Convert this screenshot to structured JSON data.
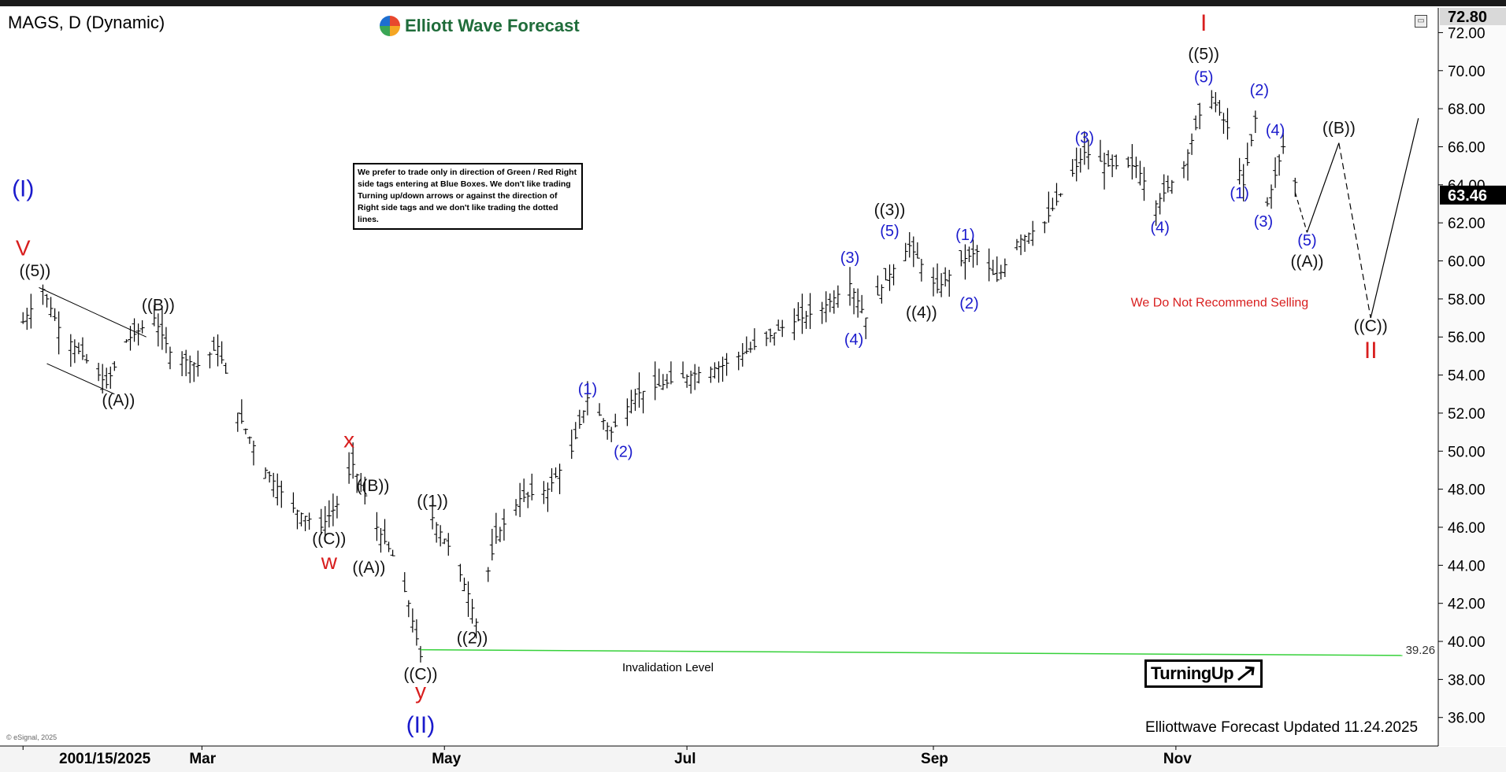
{
  "header": {
    "symbol": "MAGS, D (Dynamic)",
    "logo_text": "Elliott Wave Forecast",
    "expand_icon": "restore-window-icon"
  },
  "note": {
    "text": "We prefer to trade only in direction of Green / Red Right side tags entering at Blue Boxes. We don't like trading Turning up/down arrows or against the direction of Right side tags and we don't like trading the dotted lines."
  },
  "footer": {
    "updated": "Elliottwave Forecast Updated 11.24.2025",
    "esignal": "© eSignal, 2025",
    "dyn": "Dyn"
  },
  "turning_up": {
    "label": "TurningUp",
    "icon": "arrow-up-right-icon"
  },
  "colors": {
    "blue": "#1a1acc",
    "red": "#d81e1e",
    "black": "#111111",
    "green": "#36d13a",
    "grid": "#ffffff"
  },
  "chart_data": {
    "type": "ohlc",
    "title": "",
    "xlabel": "",
    "ylabel": "",
    "x_ticks": [
      "2001/15/2025",
      "Mar",
      "May",
      "Jul",
      "Sep",
      "Nov"
    ],
    "y_ticks": [
      36.0,
      38.0,
      40.0,
      42.0,
      44.0,
      46.0,
      48.0,
      50.0,
      52.0,
      54.0,
      56.0,
      58.0,
      60.0,
      62.0,
      64.0,
      66.0,
      68.0,
      70.0,
      72.0
    ],
    "ylim": [
      34.5,
      73.3
    ],
    "last_price": "63.46",
    "top_price": "72.80",
    "invalidation": {
      "value": 39.26,
      "label": "39.26",
      "text": "Invalidation Level"
    },
    "series": [
      {
        "values_key": "daily_path",
        "path": [
          [
            "2025-01-15",
            56.8
          ],
          [
            "2025-01-20",
            58.5
          ],
          [
            "2025-01-24",
            56.5
          ],
          [
            "2025-01-30",
            55.0
          ],
          [
            "2025-02-05",
            53.5
          ],
          [
            "2025-02-10",
            55.8
          ],
          [
            "2025-02-17",
            57.0
          ],
          [
            "2025-02-21",
            55.2
          ],
          [
            "2025-02-28",
            54.5
          ],
          [
            "2025-03-05",
            55.5
          ],
          [
            "2025-03-10",
            52.0
          ],
          [
            "2025-03-17",
            49.0
          ],
          [
            "2025-03-24",
            47.0
          ],
          [
            "2025-03-31",
            46.0
          ],
          [
            "2025-04-04",
            47.2
          ],
          [
            "2025-04-08",
            49.3
          ],
          [
            "2025-04-14",
            46.0
          ],
          [
            "2025-04-18",
            44.5
          ],
          [
            "2025-04-22",
            42.0
          ],
          [
            "2025-04-25",
            39.2
          ],
          [
            "2025-04-28",
            46.5
          ],
          [
            "2025-05-02",
            45.0
          ],
          [
            "2025-05-07",
            42.5
          ],
          [
            "2025-05-09",
            41.0
          ],
          [
            "2025-05-14",
            45.5
          ],
          [
            "2025-05-20",
            47.5
          ],
          [
            "2025-05-27",
            48.0
          ],
          [
            "2025-06-02",
            50.0
          ],
          [
            "2025-06-06",
            52.8
          ],
          [
            "2025-06-12",
            51.0
          ],
          [
            "2025-06-18",
            53.0
          ],
          [
            "2025-06-25",
            53.5
          ],
          [
            "2025-07-02",
            54.0
          ],
          [
            "2025-07-10",
            54.5
          ],
          [
            "2025-07-18",
            55.5
          ],
          [
            "2025-07-25",
            56.5
          ],
          [
            "2025-08-04",
            57.5
          ],
          [
            "2025-08-11",
            58.8
          ],
          [
            "2025-08-15",
            57.0
          ],
          [
            "2025-08-20",
            59.0
          ],
          [
            "2025-08-26",
            60.8
          ],
          [
            "2025-09-02",
            58.5
          ],
          [
            "2025-09-08",
            60.0
          ],
          [
            "2025-09-12",
            60.5
          ],
          [
            "2025-09-17",
            59.0
          ],
          [
            "2025-09-22",
            61.0
          ],
          [
            "2025-09-29",
            62.0
          ],
          [
            "2025-10-03",
            63.5
          ],
          [
            "2025-10-09",
            65.7
          ],
          [
            "2025-10-15",
            65.0
          ],
          [
            "2025-10-22",
            65.0
          ],
          [
            "2025-10-27",
            63.0
          ],
          [
            "2025-11-03",
            65.0
          ],
          [
            "2025-11-09",
            69.0
          ],
          [
            "2025-11-14",
            67.0
          ],
          [
            "2025-11-18",
            64.0
          ],
          [
            "2025-11-21",
            67.5
          ],
          [
            "2025-11-24",
            63.0
          ],
          [
            "2025-11-28",
            66.0
          ],
          [
            "2025-12-02",
            63.5
          ]
        ]
      }
    ],
    "projection": [
      [
        "2025-12-04",
        61.5
      ],
      [
        "2025-12-12",
        66.2
      ],
      [
        "2025-12-20",
        57.0
      ],
      [
        "2026-01-01",
        67.5
      ]
    ],
    "labels": [
      {
        "text": "(I)",
        "date": "2025-01-15",
        "y": 63.4,
        "color": "blue",
        "size": 30
      },
      {
        "text": "V",
        "date": "2025-01-15",
        "y": 60.3,
        "color": "red",
        "size": 28
      },
      {
        "text": "((5))",
        "date": "2025-01-18",
        "y": 59.2,
        "color": "black",
        "size": 21
      },
      {
        "text": "((A))",
        "date": "2025-02-08",
        "y": 52.4,
        "color": "black",
        "size": 21
      },
      {
        "text": "((B))",
        "date": "2025-02-18",
        "y": 57.4,
        "color": "black",
        "size": 21
      },
      {
        "text": "x",
        "date": "2025-04-07",
        "y": 50.2,
        "color": "red",
        "size": 28
      },
      {
        "text": "((B))",
        "date": "2025-04-13",
        "y": 47.9,
        "color": "black",
        "size": 21
      },
      {
        "text": "((1))",
        "date": "2025-04-28",
        "y": 47.1,
        "color": "black",
        "size": 21
      },
      {
        "text": "((C))",
        "date": "2025-04-02",
        "y": 45.1,
        "color": "black",
        "size": 21
      },
      {
        "text": "w",
        "date": "2025-04-02",
        "y": 43.8,
        "color": "red",
        "size": 28
      },
      {
        "text": "((A))",
        "date": "2025-04-12",
        "y": 43.6,
        "color": "black",
        "size": 21
      },
      {
        "text": "((2))",
        "date": "2025-05-08",
        "y": 39.9,
        "color": "black",
        "size": 21
      },
      {
        "text": "((C))",
        "date": "2025-04-25",
        "y": 38.0,
        "color": "black",
        "size": 21
      },
      {
        "text": "y",
        "date": "2025-04-25",
        "y": 37.0,
        "color": "red",
        "size": 28
      },
      {
        "text": "(II)",
        "date": "2025-04-25",
        "y": 35.2,
        "color": "blue",
        "size": 30
      },
      {
        "text": "(1)",
        "date": "2025-06-06",
        "y": 53.0,
        "color": "blue",
        "size": 20
      },
      {
        "text": "(2)",
        "date": "2025-06-15",
        "y": 49.7,
        "color": "blue",
        "size": 20
      },
      {
        "text": "(3)",
        "date": "2025-08-11",
        "y": 59.9,
        "color": "blue",
        "size": 20
      },
      {
        "text": "(4)",
        "date": "2025-08-12",
        "y": 55.6,
        "color": "blue",
        "size": 20
      },
      {
        "text": "((3))",
        "date": "2025-08-21",
        "y": 62.4,
        "color": "black",
        "size": 21
      },
      {
        "text": "(5)",
        "date": "2025-08-21",
        "y": 61.3,
        "color": "blue",
        "size": 20
      },
      {
        "text": "((4))",
        "date": "2025-08-29",
        "y": 57.0,
        "color": "black",
        "size": 21
      },
      {
        "text": "(1)",
        "date": "2025-09-09",
        "y": 61.1,
        "color": "blue",
        "size": 20
      },
      {
        "text": "(2)",
        "date": "2025-09-10",
        "y": 57.5,
        "color": "blue",
        "size": 20
      },
      {
        "text": "(3)",
        "date": "2025-10-09",
        "y": 66.2,
        "color": "blue",
        "size": 20
      },
      {
        "text": "(4)",
        "date": "2025-10-28",
        "y": 61.5,
        "color": "blue",
        "size": 20
      },
      {
        "text": "I",
        "date": "2025-11-08",
        "y": 72.1,
        "color": "red",
        "size": 30
      },
      {
        "text": "((5))",
        "date": "2025-11-08",
        "y": 70.6,
        "color": "black",
        "size": 21
      },
      {
        "text": "(5)",
        "date": "2025-11-08",
        "y": 69.4,
        "color": "blue",
        "size": 20
      },
      {
        "text": "(1)",
        "date": "2025-11-17",
        "y": 63.3,
        "color": "blue",
        "size": 20
      },
      {
        "text": "(2)",
        "date": "2025-11-22",
        "y": 68.7,
        "color": "blue",
        "size": 20
      },
      {
        "text": "(4)",
        "date": "2025-11-26",
        "y": 66.6,
        "color": "blue",
        "size": 20
      },
      {
        "text": "(3)",
        "date": "2025-11-23",
        "y": 61.8,
        "color": "blue",
        "size": 20
      },
      {
        "text": "((B))",
        "date": "2025-12-12",
        "y": 66.7,
        "color": "black",
        "size": 21
      },
      {
        "text": "(5)",
        "date": "2025-12-04",
        "y": 60.8,
        "color": "blue",
        "size": 20
      },
      {
        "text": "((A))",
        "date": "2025-12-04",
        "y": 59.7,
        "color": "black",
        "size": 21
      },
      {
        "text": "((C))",
        "date": "2025-12-20",
        "y": 56.3,
        "color": "black",
        "size": 21
      },
      {
        "text": "II",
        "date": "2025-12-20",
        "y": 54.9,
        "color": "red",
        "size": 30
      },
      {
        "text": "We Do Not Recommend Selling",
        "date": "2025-11-12",
        "y": 57.6,
        "color": "red",
        "size": 16
      }
    ]
  }
}
